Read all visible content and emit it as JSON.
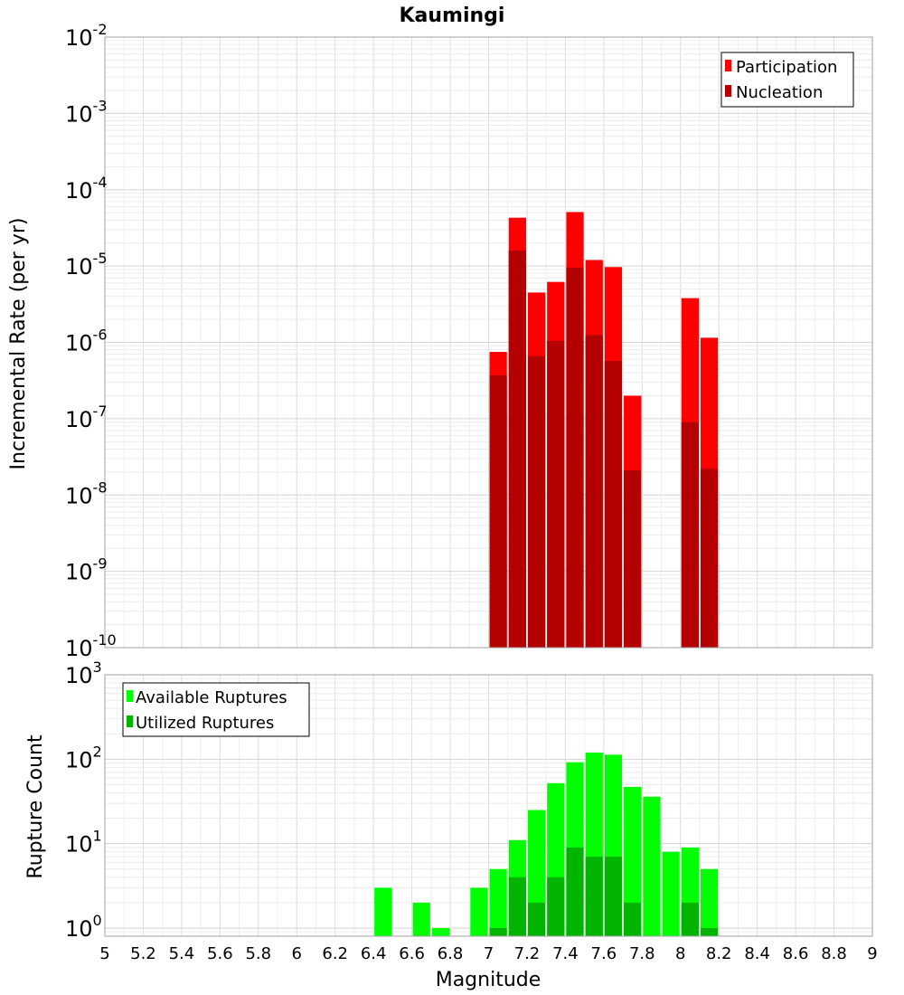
{
  "chart_data": [
    {
      "type": "bar",
      "title": "Kaumingi",
      "xlabel": "Magnitude",
      "ylabel": "Incremental Rate (per yr)",
      "yscale": "log",
      "ylim": [
        1e-10,
        0.01
      ],
      "xlim": [
        5,
        9
      ],
      "grid": true,
      "legend_position": "top-right",
      "y_ticks": [
        {
          "base": "10",
          "exp": "-10",
          "value": 1e-10
        },
        {
          "base": "10",
          "exp": "-9",
          "value": 1e-09
        },
        {
          "base": "10",
          "exp": "-8",
          "value": 1e-08
        },
        {
          "base": "10",
          "exp": "-7",
          "value": 1e-07
        },
        {
          "base": "10",
          "exp": "-6",
          "value": 1e-06
        },
        {
          "base": "10",
          "exp": "-5",
          "value": 1e-05
        },
        {
          "base": "10",
          "exp": "-4",
          "value": 0.0001
        },
        {
          "base": "10",
          "exp": "-3",
          "value": 0.001
        },
        {
          "base": "10",
          "exp": "-2",
          "value": 0.01
        }
      ],
      "x": [
        7.05,
        7.15,
        7.25,
        7.35,
        7.45,
        7.55,
        7.65,
        7.75,
        8.05,
        8.15
      ],
      "bar_width": 0.1,
      "series": [
        {
          "name": "Participation",
          "color": "#ff0000",
          "values": [
            7.5e-07,
            4.3e-05,
            4.5e-06,
            6.2e-06,
            5.1e-05,
            1.2e-05,
            9.7e-06,
            2e-07,
            3.8e-06,
            1.15e-06
          ]
        },
        {
          "name": "Nucleation",
          "color": "#b40000",
          "values": [
            3.7e-07,
            1.6e-05,
            6.6e-07,
            1.05e-06,
            9.5e-06,
            1.25e-06,
            5.7e-07,
            2.1e-08,
            9e-08,
            2.2e-08
          ]
        }
      ]
    },
    {
      "type": "bar",
      "title": "",
      "xlabel": "Magnitude",
      "ylabel": "Rupture Count",
      "yscale": "log",
      "ylim": [
        0.8,
        1000
      ],
      "xlim": [
        5,
        9
      ],
      "grid": true,
      "legend_position": "top-left",
      "x_ticks": [
        "5",
        "5.2",
        "5.4",
        "5.6",
        "5.8",
        "6",
        "6.2",
        "6.4",
        "6.6",
        "6.8",
        "7",
        "7.2",
        "7.4",
        "7.6",
        "7.8",
        "8",
        "8.2",
        "8.4",
        "8.6",
        "8.8",
        "9"
      ],
      "y_ticks": [
        {
          "base": "10",
          "exp": "0",
          "value": 1
        },
        {
          "base": "10",
          "exp": "1",
          "value": 10
        },
        {
          "base": "10",
          "exp": "2",
          "value": 100
        },
        {
          "base": "10",
          "exp": "3",
          "value": 1000
        }
      ],
      "x": [
        6.45,
        6.65,
        6.75,
        6.95,
        7.05,
        7.15,
        7.25,
        7.35,
        7.45,
        7.55,
        7.65,
        7.75,
        7.85,
        7.95,
        8.05,
        8.15
      ],
      "bar_width": 0.1,
      "series": [
        {
          "name": "Available Ruptures",
          "color": "#00ff00",
          "values": [
            3,
            2,
            1,
            3,
            5,
            11,
            25,
            52,
            92,
            120,
            113,
            47,
            36,
            8,
            9,
            5
          ]
        },
        {
          "name": "Utilized Ruptures",
          "color": "#00b400",
          "values": [
            0,
            0,
            0,
            0,
            1,
            4,
            2,
            4,
            9,
            7,
            7,
            2,
            0,
            0,
            2,
            1
          ]
        }
      ]
    }
  ]
}
